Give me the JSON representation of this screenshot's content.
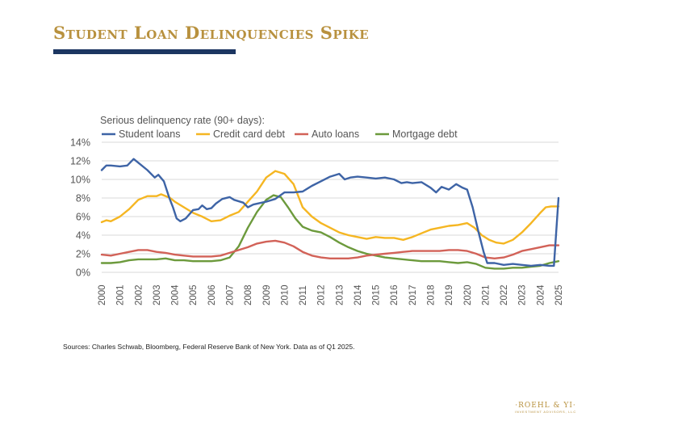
{
  "page": {
    "title": "Student Loan Delinquencies Spike",
    "sources": "Sources: Charles Schwab, Bloomberg, Federal Reserve Bank of New York. Data as of Q1 2025.",
    "logo": {
      "name": "·ROEHL & YI·",
      "tagline": "INVESTMENT ADVISORS, LLC"
    }
  },
  "colors": {
    "title": "#b8913e",
    "rule": "#1c3661",
    "student_loans": "#3e64a6",
    "credit_card_debt": "#f5b622",
    "auto_loans": "#d26258",
    "mortgage_debt": "#6c9a3c",
    "grid": "#d9d9d9",
    "tick_text": "#555555"
  },
  "chart_data": {
    "type": "line",
    "subtitle": "Serious delinquency rate (90+ days):",
    "ylim": [
      0,
      14
    ],
    "yticks": [
      "0%",
      "2%",
      "4%",
      "6%",
      "8%",
      "10%",
      "12%",
      "14%"
    ],
    "xlim": [
      2000,
      2025
    ],
    "xticks": [
      "2000",
      "2001",
      "2002",
      "2003",
      "2004",
      "2005",
      "2006",
      "2007",
      "2008",
      "2009",
      "2010",
      "2011",
      "2012",
      "2013",
      "2014",
      "2015",
      "2016",
      "2017",
      "2018",
      "2019",
      "2020",
      "2021",
      "2022",
      "2023",
      "2024",
      "2025"
    ],
    "grid": true,
    "legend_position": "top",
    "series": [
      {
        "name": "Student loans",
        "color_key": "student_loans",
        "points": [
          [
            2000,
            11.0
          ],
          [
            2000.25,
            11.5
          ],
          [
            2000.5,
            11.5
          ],
          [
            2001,
            11.4
          ],
          [
            2001.4,
            11.5
          ],
          [
            2001.75,
            12.2
          ],
          [
            2002,
            11.8
          ],
          [
            2002.5,
            11.0
          ],
          [
            2002.9,
            10.2
          ],
          [
            2003.1,
            10.5
          ],
          [
            2003.4,
            9.8
          ],
          [
            2003.7,
            8.0
          ],
          [
            2003.9,
            7.0
          ],
          [
            2004.1,
            5.8
          ],
          [
            2004.3,
            5.5
          ],
          [
            2004.6,
            5.8
          ],
          [
            2005,
            6.7
          ],
          [
            2005.3,
            6.8
          ],
          [
            2005.5,
            7.2
          ],
          [
            2005.75,
            6.8
          ],
          [
            2006,
            6.9
          ],
          [
            2006.25,
            7.4
          ],
          [
            2006.6,
            7.9
          ],
          [
            2007,
            8.1
          ],
          [
            2007.25,
            7.8
          ],
          [
            2007.75,
            7.5
          ],
          [
            2008,
            7.0
          ],
          [
            2008.3,
            7.3
          ],
          [
            2008.75,
            7.5
          ],
          [
            2009,
            7.6
          ],
          [
            2009.5,
            7.9
          ],
          [
            2010,
            8.6
          ],
          [
            2010.5,
            8.6
          ],
          [
            2011,
            8.7
          ],
          [
            2011.5,
            9.3
          ],
          [
            2012,
            9.8
          ],
          [
            2012.5,
            10.3
          ],
          [
            2013,
            10.6
          ],
          [
            2013.3,
            10.0
          ],
          [
            2013.6,
            10.2
          ],
          [
            2014,
            10.3
          ],
          [
            2014.5,
            10.2
          ],
          [
            2015,
            10.1
          ],
          [
            2015.5,
            10.2
          ],
          [
            2016,
            10.0
          ],
          [
            2016.4,
            9.6
          ],
          [
            2016.7,
            9.7
          ],
          [
            2017,
            9.6
          ],
          [
            2017.5,
            9.7
          ],
          [
            2018,
            9.1
          ],
          [
            2018.3,
            8.6
          ],
          [
            2018.6,
            9.2
          ],
          [
            2019,
            8.9
          ],
          [
            2019.4,
            9.5
          ],
          [
            2019.75,
            9.1
          ],
          [
            2020,
            8.9
          ],
          [
            2020.3,
            7.0
          ],
          [
            2020.6,
            4.5
          ],
          [
            2020.9,
            2.2
          ],
          [
            2021.1,
            1.0
          ],
          [
            2021.5,
            1.0
          ],
          [
            2022,
            0.8
          ],
          [
            2022.5,
            0.9
          ],
          [
            2023,
            0.8
          ],
          [
            2023.5,
            0.7
          ],
          [
            2024,
            0.8
          ],
          [
            2024.5,
            0.7
          ],
          [
            2024.75,
            0.7
          ],
          [
            2025,
            8.0
          ]
        ]
      },
      {
        "name": "Credit card debt",
        "color_key": "credit_card_debt",
        "points": [
          [
            2000,
            5.4
          ],
          [
            2000.25,
            5.6
          ],
          [
            2000.5,
            5.5
          ],
          [
            2001,
            6.0
          ],
          [
            2001.5,
            6.8
          ],
          [
            2002,
            7.8
          ],
          [
            2002.5,
            8.2
          ],
          [
            2003,
            8.2
          ],
          [
            2003.25,
            8.4
          ],
          [
            2003.75,
            8.0
          ],
          [
            2004,
            7.6
          ],
          [
            2004.5,
            7.0
          ],
          [
            2005,
            6.4
          ],
          [
            2005.5,
            6.0
          ],
          [
            2006,
            5.5
          ],
          [
            2006.5,
            5.6
          ],
          [
            2007,
            6.1
          ],
          [
            2007.5,
            6.5
          ],
          [
            2008,
            7.6
          ],
          [
            2008.5,
            8.7
          ],
          [
            2009,
            10.2
          ],
          [
            2009.5,
            10.9
          ],
          [
            2010,
            10.6
          ],
          [
            2010.5,
            9.5
          ],
          [
            2011,
            7.0
          ],
          [
            2011.5,
            6.0
          ],
          [
            2012,
            5.3
          ],
          [
            2012.5,
            4.8
          ],
          [
            2013,
            4.3
          ],
          [
            2013.5,
            4.0
          ],
          [
            2014,
            3.8
          ],
          [
            2014.5,
            3.6
          ],
          [
            2015,
            3.8
          ],
          [
            2015.5,
            3.7
          ],
          [
            2016,
            3.7
          ],
          [
            2016.5,
            3.5
          ],
          [
            2017,
            3.8
          ],
          [
            2017.5,
            4.2
          ],
          [
            2018,
            4.6
          ],
          [
            2018.5,
            4.8
          ],
          [
            2019,
            5.0
          ],
          [
            2019.5,
            5.1
          ],
          [
            2020,
            5.3
          ],
          [
            2020.4,
            4.8
          ],
          [
            2020.8,
            4.0
          ],
          [
            2021.2,
            3.5
          ],
          [
            2021.6,
            3.2
          ],
          [
            2022,
            3.1
          ],
          [
            2022.5,
            3.5
          ],
          [
            2023,
            4.3
          ],
          [
            2023.5,
            5.3
          ],
          [
            2024,
            6.4
          ],
          [
            2024.3,
            7.0
          ],
          [
            2024.6,
            7.1
          ],
          [
            2025,
            7.1
          ]
        ]
      },
      {
        "name": "Auto loans",
        "color_key": "auto_loans",
        "points": [
          [
            2000,
            1.9
          ],
          [
            2000.5,
            1.8
          ],
          [
            2001,
            2.0
          ],
          [
            2001.5,
            2.2
          ],
          [
            2002,
            2.4
          ],
          [
            2002.5,
            2.4
          ],
          [
            2003,
            2.2
          ],
          [
            2003.5,
            2.1
          ],
          [
            2004,
            1.9
          ],
          [
            2004.5,
            1.8
          ],
          [
            2005,
            1.7
          ],
          [
            2005.5,
            1.7
          ],
          [
            2006,
            1.7
          ],
          [
            2006.5,
            1.8
          ],
          [
            2007,
            2.1
          ],
          [
            2007.5,
            2.4
          ],
          [
            2008,
            2.7
          ],
          [
            2008.5,
            3.1
          ],
          [
            2009,
            3.3
          ],
          [
            2009.5,
            3.4
          ],
          [
            2010,
            3.2
          ],
          [
            2010.5,
            2.8
          ],
          [
            2011,
            2.2
          ],
          [
            2011.5,
            1.8
          ],
          [
            2012,
            1.6
          ],
          [
            2012.5,
            1.5
          ],
          [
            2013,
            1.5
          ],
          [
            2013.5,
            1.5
          ],
          [
            2014,
            1.6
          ],
          [
            2014.5,
            1.8
          ],
          [
            2015,
            1.9
          ],
          [
            2015.5,
            2.0
          ],
          [
            2016,
            2.1
          ],
          [
            2016.5,
            2.2
          ],
          [
            2017,
            2.3
          ],
          [
            2017.5,
            2.3
          ],
          [
            2018,
            2.3
          ],
          [
            2018.5,
            2.3
          ],
          [
            2019,
            2.4
          ],
          [
            2019.5,
            2.4
          ],
          [
            2020,
            2.3
          ],
          [
            2020.5,
            2.0
          ],
          [
            2021,
            1.6
          ],
          [
            2021.5,
            1.5
          ],
          [
            2022,
            1.6
          ],
          [
            2022.5,
            1.9
          ],
          [
            2023,
            2.3
          ],
          [
            2023.5,
            2.5
          ],
          [
            2024,
            2.7
          ],
          [
            2024.5,
            2.9
          ],
          [
            2025,
            2.9
          ]
        ]
      },
      {
        "name": "Mortgage debt",
        "color_key": "mortgage_debt",
        "points": [
          [
            2000,
            1.0
          ],
          [
            2000.5,
            1.0
          ],
          [
            2001,
            1.1
          ],
          [
            2001.5,
            1.3
          ],
          [
            2002,
            1.4
          ],
          [
            2002.5,
            1.4
          ],
          [
            2003,
            1.4
          ],
          [
            2003.5,
            1.5
          ],
          [
            2004,
            1.3
          ],
          [
            2004.5,
            1.3
          ],
          [
            2005,
            1.2
          ],
          [
            2005.5,
            1.2
          ],
          [
            2006,
            1.2
          ],
          [
            2006.5,
            1.3
          ],
          [
            2007,
            1.6
          ],
          [
            2007.5,
            2.8
          ],
          [
            2008,
            4.8
          ],
          [
            2008.5,
            6.5
          ],
          [
            2009,
            7.8
          ],
          [
            2009.4,
            8.3
          ],
          [
            2009.8,
            8.1
          ],
          [
            2010.2,
            7.0
          ],
          [
            2010.6,
            5.8
          ],
          [
            2011,
            4.9
          ],
          [
            2011.5,
            4.5
          ],
          [
            2012,
            4.3
          ],
          [
            2012.5,
            3.8
          ],
          [
            2013,
            3.2
          ],
          [
            2013.5,
            2.7
          ],
          [
            2014,
            2.3
          ],
          [
            2014.5,
            2.0
          ],
          [
            2015,
            1.8
          ],
          [
            2015.5,
            1.6
          ],
          [
            2016,
            1.5
          ],
          [
            2016.5,
            1.4
          ],
          [
            2017,
            1.3
          ],
          [
            2017.5,
            1.2
          ],
          [
            2018,
            1.2
          ],
          [
            2018.5,
            1.2
          ],
          [
            2019,
            1.1
          ],
          [
            2019.5,
            1.0
          ],
          [
            2020,
            1.1
          ],
          [
            2020.5,
            0.9
          ],
          [
            2021,
            0.5
          ],
          [
            2021.5,
            0.4
          ],
          [
            2022,
            0.4
          ],
          [
            2022.5,
            0.5
          ],
          [
            2023,
            0.5
          ],
          [
            2023.5,
            0.6
          ],
          [
            2024,
            0.7
          ],
          [
            2024.5,
            1.0
          ],
          [
            2025,
            1.2
          ]
        ]
      }
    ]
  }
}
